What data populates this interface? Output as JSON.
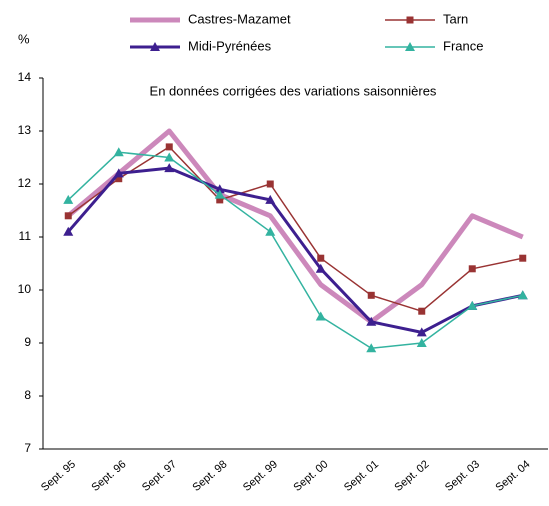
{
  "chart_data": {
    "type": "line",
    "y_label": "%",
    "subtitle": "En données corrigées des variations saisonnières",
    "categories": [
      "Sept. 95",
      "Sept. 96",
      "Sept. 97",
      "Sept. 98",
      "Sept. 99",
      "Sept. 00",
      "Sept. 01",
      "Sept. 02",
      "Sept. 03",
      "Sept. 04"
    ],
    "series": [
      {
        "name": "Castres-Mazamet",
        "color": "#cc88bb",
        "marker": "none",
        "values": [
          11.4,
          12.2,
          13.0,
          11.8,
          11.4,
          10.1,
          9.4,
          10.1,
          11.4,
          11.0
        ]
      },
      {
        "name": "Tarn",
        "color": "#993333",
        "marker": "square",
        "values": [
          11.4,
          12.1,
          12.7,
          11.7,
          12.0,
          10.6,
          9.9,
          9.6,
          10.4,
          10.6
        ]
      },
      {
        "name": "Midi-Pyrénées",
        "color": "#3d1f8f",
        "marker": "triangle",
        "values": [
          11.1,
          12.2,
          12.3,
          11.9,
          11.7,
          10.4,
          9.4,
          9.2,
          9.7,
          9.9
        ]
      },
      {
        "name": "France",
        "color": "#33b3a0",
        "marker": "triangle",
        "values": [
          11.7,
          12.6,
          12.5,
          11.8,
          11.1,
          9.5,
          8.9,
          9.0,
          9.7,
          9.9
        ]
      }
    ],
    "ylim": [
      7,
      14
    ],
    "yticks": [
      7,
      8,
      9,
      10,
      11,
      12,
      13,
      14
    ],
    "grid": false
  }
}
